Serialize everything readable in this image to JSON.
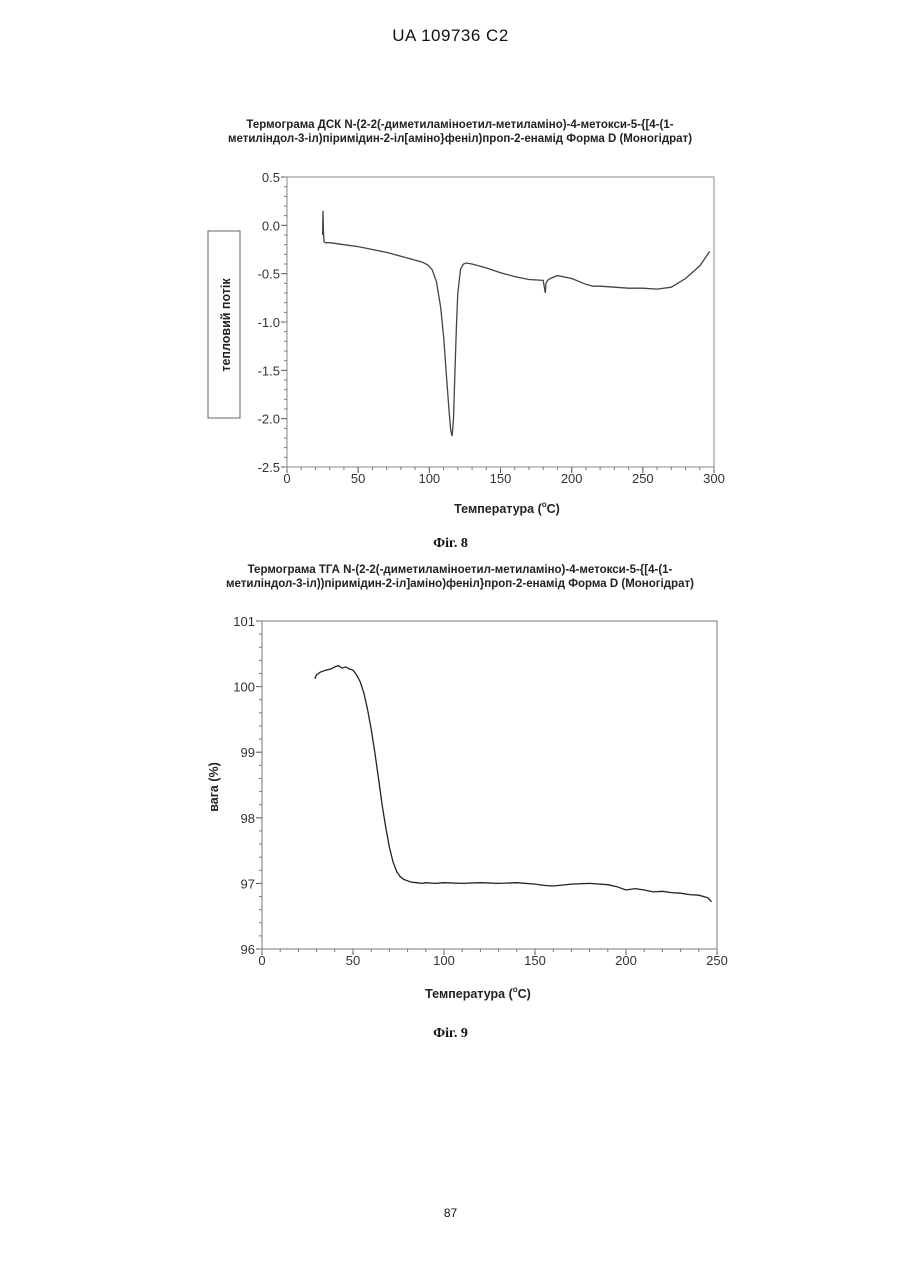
{
  "header": {
    "patent_id": "UA   109736   C2"
  },
  "page_number": "87",
  "chart_data": [
    {
      "type": "line",
      "title": "Термограма ДСК N-(2-2(-диметиламіноетил-метиламіно)-4-метокси-5-{[4-(1-метиліндол-3-іл)піримідин-2-іл[аміно}феніл)проп-2-енамід Форма D (Моногідрат)",
      "title_lines": [
        "Термограма ДСК N-(2-2(-диметиламіноетил-метиламіно)-4-метокси-5-{[4-(1-",
        "метиліндол-3-іл)піримідин-2-іл[аміно}феніл)проп-2-енамід Форма D (Моногідрат)"
      ],
      "xlabel": "Температура (°C)",
      "xlabel_parts": [
        "Температура (",
        "o",
        "C)"
      ],
      "ylabel": "тепловий потік",
      "caption": "Фіг. 8",
      "xlim": [
        0,
        300
      ],
      "ylim": [
        -2.5,
        0.5
      ],
      "x_ticks": [
        "0",
        "50",
        "100",
        "150",
        "200",
        "250",
        "300"
      ],
      "y_ticks": [
        "0.5",
        "0.0",
        "-0.5",
        "-1.0",
        "-1.5",
        "-2.0",
        "-2.5"
      ],
      "grid": false,
      "line_color": "#444444",
      "series": [
        {
          "x": [
            25,
            25.3,
            25.6,
            26,
            27,
            30,
            40,
            50,
            60,
            70,
            80,
            90,
            95,
            99,
            102,
            105,
            108,
            110,
            112,
            114,
            115,
            116,
            117,
            118,
            119,
            120,
            122,
            124,
            126,
            130,
            140,
            150,
            160,
            170,
            180,
            181.5,
            182,
            183,
            185,
            190,
            200,
            210,
            215,
            220,
            230,
            240,
            250,
            260,
            270,
            280,
            290,
            297
          ],
          "y": [
            -0.1,
            0.15,
            -0.05,
            -0.17,
            -0.18,
            -0.18,
            -0.2,
            -0.22,
            -0.25,
            -0.28,
            -0.32,
            -0.36,
            -0.38,
            -0.41,
            -0.46,
            -0.58,
            -0.85,
            -1.15,
            -1.55,
            -1.95,
            -2.12,
            -2.18,
            -2.0,
            -1.5,
            -1.05,
            -0.7,
            -0.45,
            -0.4,
            -0.39,
            -0.4,
            -0.44,
            -0.49,
            -0.53,
            -0.56,
            -0.57,
            -0.7,
            -0.6,
            -0.57,
            -0.55,
            -0.52,
            -0.55,
            -0.61,
            -0.63,
            -0.63,
            -0.64,
            -0.65,
            -0.65,
            -0.66,
            -0.64,
            -0.55,
            -0.42,
            -0.27
          ]
        }
      ]
    },
    {
      "type": "line",
      "title": "Термограма ТГА N-(2-2(-диметиламіноетил-метиламіно)-4-метокси-5-{[4-(1-метиліндол-3-іл))піримідин-2-іл]аміно)феніл}проп-2-енамід Форма D (Моногідрат)",
      "title_lines": [
        "Термограма ТГА N-(2-2(-диметиламіноетил-метиламіно)-4-метокси-5-{[4-(1-",
        "метиліндол-3-іл))піримідин-2-іл]аміно)феніл}проп-2-енамід Форма D (Моногідрат)"
      ],
      "xlabel": "Температура (°C)",
      "xlabel_parts": [
        "Температура (",
        "o",
        "C)"
      ],
      "ylabel": "вага (%)",
      "caption": "Фіг. 9",
      "xlim": [
        0,
        250
      ],
      "ylim": [
        96,
        101
      ],
      "x_ticks": [
        "0",
        "50",
        "100",
        "150",
        "200",
        "250"
      ],
      "y_ticks": [
        "101",
        "100",
        "99",
        "98",
        "97",
        "96"
      ],
      "grid": false,
      "line_color": "#222222",
      "series": [
        {
          "x": [
            29,
            30,
            32,
            35,
            38,
            40,
            42,
            44,
            46,
            48,
            50,
            52,
            54,
            56,
            58,
            60,
            62,
            64,
            66,
            68,
            70,
            72,
            74,
            76,
            78,
            80,
            82,
            85,
            88,
            90,
            95,
            100,
            110,
            120,
            130,
            140,
            150,
            155,
            160,
            170,
            180,
            190,
            195,
            200,
            205,
            210,
            215,
            220,
            225,
            230,
            235,
            240,
            245,
            247
          ],
          "y": [
            100.12,
            100.18,
            100.22,
            100.25,
            100.27,
            100.3,
            100.32,
            100.28,
            100.3,
            100.27,
            100.25,
            100.18,
            100.07,
            99.9,
            99.65,
            99.35,
            99.0,
            98.6,
            98.2,
            97.85,
            97.55,
            97.33,
            97.18,
            97.1,
            97.06,
            97.04,
            97.02,
            97.01,
            97.0,
            97.01,
            97.0,
            97.01,
            97.0,
            97.01,
            97.0,
            97.01,
            96.99,
            96.97,
            96.96,
            96.99,
            97.0,
            96.98,
            96.95,
            96.9,
            96.92,
            96.9,
            96.87,
            96.88,
            96.86,
            96.85,
            96.83,
            96.82,
            96.78,
            96.72
          ]
        }
      ]
    }
  ]
}
